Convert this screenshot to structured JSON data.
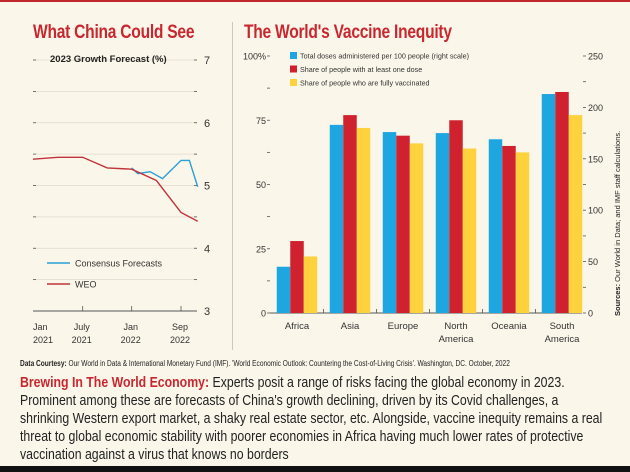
{
  "colors": {
    "accent": "#c8272f",
    "blue": "#1ea6e0",
    "red": "#d0222e",
    "yellow": "#fdd23c",
    "background": "#fbf6ea",
    "weo": "#c0333a",
    "consensus": "#2a9fd6"
  },
  "chart_data": [
    {
      "type": "line",
      "title": "What China Could See",
      "subtitle": "2023 Growth Forecast (%)",
      "y_axis_side": "right",
      "ylim": [
        3,
        7
      ],
      "yticks": [
        "7",
        "6",
        "5",
        "4",
        "3"
      ],
      "xticks": [
        {
          "date": "2021-01",
          "label1": "Jan",
          "label2": "2021"
        },
        {
          "date": "2021-07",
          "label1": "July",
          "label2": "2021"
        },
        {
          "date": "2022-01",
          "label1": "Jan",
          "label2": "2022"
        },
        {
          "date": "2022-09",
          "label1": "Sep",
          "label2": "2022"
        }
      ],
      "grid": true,
      "legend_placement": "bottom-left",
      "series": [
        {
          "name": "Consensus Forecasts",
          "color": "#2a9fd6",
          "points": [
            [
              "2022-01",
              5.28
            ],
            [
              "2022-02",
              5.19
            ],
            [
              "2022-04",
              5.22
            ],
            [
              "2022-06",
              5.11
            ],
            [
              "2022-09",
              5.4
            ],
            [
              "2022-10",
              5.4
            ],
            [
              "2022-11",
              4.98
            ]
          ]
        },
        {
          "name": "WEO",
          "color": "#c0333a",
          "points": [
            [
              "2021-01",
              5.42
            ],
            [
              "2021-04",
              5.45
            ],
            [
              "2021-07",
              5.45
            ],
            [
              "2021-10",
              5.28
            ],
            [
              "2022-01",
              5.26
            ],
            [
              "2022-05",
              5.08
            ],
            [
              "2022-09",
              4.57
            ],
            [
              "2022-11",
              4.43
            ]
          ]
        }
      ]
    },
    {
      "type": "bar",
      "title": "The World's Vaccine Inequity",
      "categories": [
        "Africa",
        "Asia",
        "Europe",
        "North America",
        "Oceania",
        "South America"
      ],
      "category_lines": [
        [
          "Africa"
        ],
        [
          "Asia"
        ],
        [
          "Europe"
        ],
        [
          "North",
          "America"
        ],
        [
          "Oceania"
        ],
        [
          "South",
          "America"
        ]
      ],
      "left_ylim": [
        0,
        100
      ],
      "left_yticks": [
        "100%",
        "75",
        "50",
        "25",
        "0"
      ],
      "right_ylim": [
        0,
        250
      ],
      "right_yticks": [
        "250",
        "200",
        "150",
        "100",
        "50",
        "0"
      ],
      "legend_placement": "top-left",
      "series": [
        {
          "name": "Total doses administered per 100 people (right scale)",
          "axis": "right",
          "color": "#1ea6e0",
          "values": [
            45,
            183,
            176,
            175,
            169,
            213
          ]
        },
        {
          "name": "Share of people with at least one dose",
          "axis": "left",
          "color": "#d0222e",
          "values": [
            28,
            77,
            69,
            75,
            65,
            86
          ]
        },
        {
          "name": "Share of people who are fully vaccinated",
          "axis": "left",
          "color": "#fdd23c",
          "values": [
            22,
            72,
            66,
            64,
            62.5,
            77
          ]
        }
      ],
      "source_label": "Sources:",
      "source_text": "Our World in Data; and IMF staff calculations."
    }
  ],
  "footer": {
    "courtesy_label": "Data Courtesy:",
    "courtesy_text": "Our World in Data & International Monetary Fund (IMF). 'World Economic Outlook: Countering the Cost-of-Living Crisis'. Washington, DC. October, 2022",
    "lead": "Brewing In The World Economy:",
    "body": "Experts posit a range of risks facing the global economy in 2023. Prominent among these are forecasts of China's growth declining, driven by its Covid challenges, a shrinking Western export market, a shaky real estate sector, etc. Alongside, vaccine inequity remains a real threat to global economic stability with poorer economies in Africa having much lower rates of protective vaccination against a virus that knows no borders"
  }
}
